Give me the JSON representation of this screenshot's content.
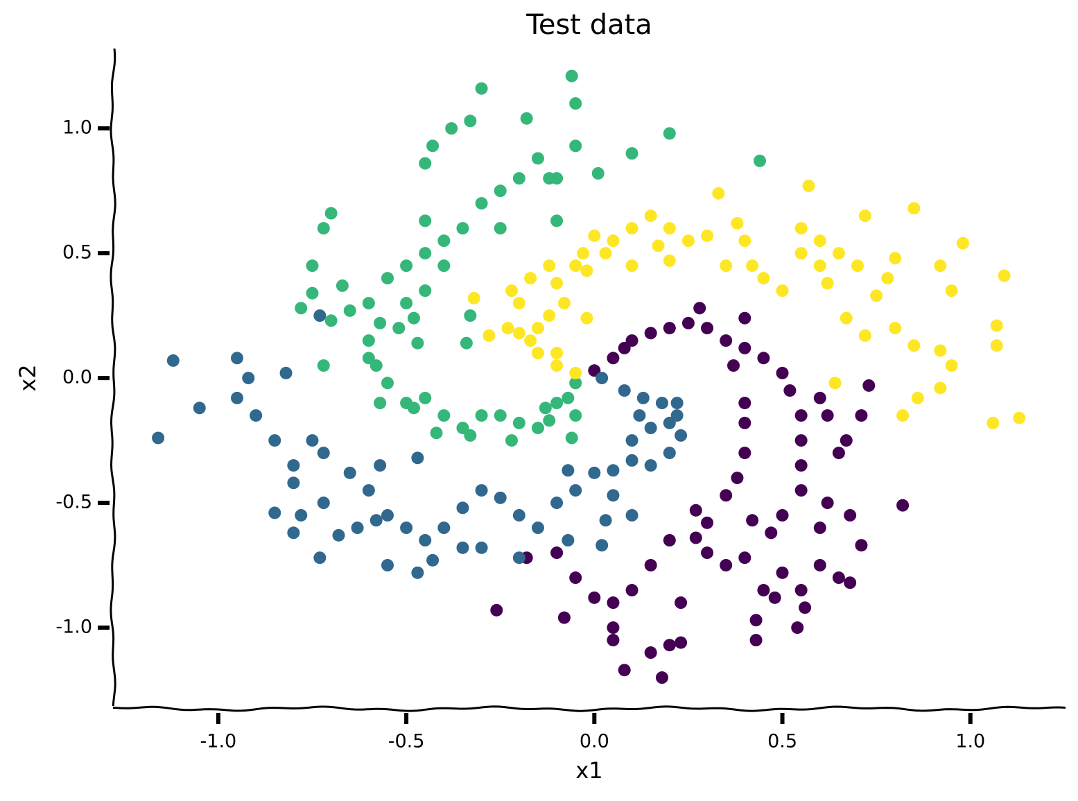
{
  "chart_data": {
    "type": "scatter",
    "title": "Test data",
    "x_label": "x1",
    "y_label": "x2",
    "xlim": [
      -1.28,
      1.253
    ],
    "ylim": [
      -1.325,
      1.32
    ],
    "xticks": [
      {
        "value": -1,
        "label": "-1.0"
      },
      -0.5,
      {
        "value": 0,
        "label": "0.0"
      },
      0.5,
      {
        "value": 1,
        "label": "1.0"
      }
    ],
    "yticks": [
      {
        "value": -1,
        "label": "-1.0"
      },
      -0.5,
      {
        "value": 0,
        "label": "0.0"
      },
      0.5,
      {
        "value": 1,
        "label": "1.0"
      }
    ],
    "series": [
      {
        "color": "#440154",
        "x": [
          0.0,
          0.05,
          0.08,
          0.1,
          0.15,
          0.2,
          0.25,
          0.3,
          0.35,
          0.4,
          0.45,
          0.5,
          0.52,
          0.55,
          0.55,
          0.55,
          0.55,
          0.5,
          0.47,
          0.4,
          0.35,
          0.3,
          0.2,
          0.15,
          0.1,
          0.05,
          0.0,
          -0.05,
          -0.1,
          -0.18,
          -0.08,
          -0.26,
          0.05,
          0.05,
          0.08,
          0.15,
          0.18,
          0.2,
          0.23,
          0.23,
          0.43,
          0.43,
          0.54,
          0.56,
          0.6,
          0.65,
          0.68,
          0.71,
          0.68,
          0.82,
          0.6,
          0.62,
          0.65,
          0.67,
          0.73,
          0.6,
          0.62,
          0.71,
          0.4,
          0.4,
          0.4,
          0.38,
          0.35,
          0.27,
          0.27,
          0.3,
          0.42,
          0.45,
          0.48,
          0.5,
          0.55,
          0.37,
          0.4,
          0.28
        ],
        "y": [
          0.03,
          0.08,
          0.12,
          0.15,
          0.18,
          0.2,
          0.22,
          0.2,
          0.15,
          0.12,
          0.08,
          0.02,
          -0.05,
          -0.15,
          -0.25,
          -0.35,
          -0.45,
          -0.55,
          -0.62,
          -0.72,
          -0.75,
          -0.7,
          -0.65,
          -0.75,
          -0.85,
          -0.9,
          -0.88,
          -0.8,
          -0.7,
          -0.72,
          -0.96,
          -0.93,
          -1.0,
          -1.05,
          -1.17,
          -1.1,
          -1.2,
          -1.07,
          -1.06,
          -0.9,
          -1.05,
          -0.97,
          -1.0,
          -0.92,
          -0.75,
          -0.8,
          -0.82,
          -0.67,
          -0.55,
          -0.51,
          -0.6,
          -0.5,
          -0.3,
          -0.25,
          -0.03,
          -0.08,
          -0.15,
          -0.15,
          -0.1,
          -0.18,
          -0.3,
          -0.4,
          -0.47,
          -0.53,
          -0.64,
          -0.58,
          -0.57,
          -0.85,
          -0.88,
          -0.78,
          -0.85,
          0.05,
          0.24,
          0.28
        ]
      },
      {
        "color": "#31688e",
        "x": [
          0.02,
          0.08,
          0.13,
          0.18,
          0.22,
          0.23,
          0.2,
          0.15,
          0.1,
          0.1,
          0.15,
          0.12,
          0.05,
          0.0,
          -0.05,
          -0.1,
          -0.15,
          -0.2,
          -0.25,
          -0.3,
          -0.35,
          -0.4,
          -0.45,
          -0.5,
          -0.55,
          -0.6,
          -0.65,
          -0.72,
          -0.75,
          -0.8,
          -0.85,
          -0.9,
          -0.95,
          -1.05,
          -1.12,
          -1.16,
          -0.95,
          -0.92,
          -0.82,
          -0.73,
          -0.8,
          -0.78,
          -0.85,
          -0.8,
          -0.73,
          -0.68,
          -0.72,
          -0.55,
          -0.47,
          -0.43,
          -0.35,
          -0.3,
          -0.2,
          -0.07,
          0.02,
          -0.07,
          0.05,
          0.1,
          0.03,
          0.2,
          0.22,
          -0.58,
          -0.63,
          -0.47,
          -0.57
        ],
        "y": [
          0.0,
          -0.05,
          -0.08,
          -0.1,
          -0.15,
          -0.23,
          -0.3,
          -0.35,
          -0.33,
          -0.25,
          -0.2,
          -0.15,
          -0.37,
          -0.38,
          -0.45,
          -0.5,
          -0.6,
          -0.55,
          -0.48,
          -0.45,
          -0.52,
          -0.6,
          -0.65,
          -0.6,
          -0.55,
          -0.45,
          -0.38,
          -0.3,
          -0.25,
          -0.35,
          -0.25,
          -0.15,
          -0.08,
          -0.12,
          0.07,
          -0.24,
          0.08,
          0.0,
          0.02,
          0.25,
          -0.42,
          -0.55,
          -0.54,
          -0.62,
          -0.72,
          -0.63,
          -0.5,
          -0.75,
          -0.78,
          -0.73,
          -0.68,
          -0.68,
          -0.72,
          -0.65,
          -0.67,
          -0.37,
          -0.47,
          -0.55,
          -0.57,
          -0.18,
          -0.1,
          -0.57,
          -0.6,
          -0.32,
          -0.35
        ]
      },
      {
        "color": "#35b779",
        "x": [
          -0.05,
          -0.1,
          -0.13,
          -0.2,
          -0.25,
          -0.3,
          -0.35,
          -0.4,
          -0.45,
          -0.5,
          -0.55,
          -0.58,
          -0.6,
          -0.57,
          -0.6,
          -0.55,
          -0.5,
          -0.45,
          -0.4,
          -0.35,
          -0.3,
          -0.25,
          -0.2,
          -0.15,
          -0.1,
          -0.05,
          -0.06,
          -0.05,
          -0.3,
          -0.18,
          0.2,
          0.1,
          0.44,
          0.01,
          -0.38,
          -0.33,
          -0.43,
          -0.45,
          -0.7,
          -0.72,
          -0.75,
          -0.75,
          -0.67,
          -0.65,
          -0.7,
          -0.72,
          -0.6,
          -0.57,
          -0.48,
          -0.42,
          -0.33,
          -0.22,
          -0.12,
          -0.06,
          -0.07,
          -0.47,
          -0.5,
          -0.45,
          -0.52,
          -0.45,
          -0.4,
          -0.25,
          -0.1,
          -0.12,
          -0.48,
          -0.33,
          -0.34,
          -0.05,
          -0.15,
          -0.78
        ],
        "y": [
          -0.02,
          -0.1,
          -0.12,
          -0.18,
          -0.15,
          -0.15,
          -0.2,
          -0.15,
          -0.08,
          -0.1,
          -0.02,
          0.05,
          0.15,
          0.22,
          0.3,
          0.4,
          0.45,
          0.5,
          0.55,
          0.6,
          0.7,
          0.75,
          0.8,
          0.88,
          0.8,
          0.93,
          1.21,
          1.1,
          1.16,
          1.04,
          0.98,
          0.9,
          0.87,
          0.82,
          1.0,
          1.03,
          0.93,
          0.86,
          0.66,
          0.6,
          0.45,
          0.34,
          0.37,
          0.27,
          0.23,
          0.05,
          0.08,
          -0.1,
          -0.12,
          -0.22,
          -0.23,
          -0.25,
          -0.17,
          -0.24,
          -0.08,
          0.14,
          0.3,
          0.35,
          0.2,
          0.63,
          0.45,
          0.6,
          0.63,
          0.8,
          0.24,
          0.25,
          0.14,
          -0.15,
          -0.2,
          0.28
        ]
      },
      {
        "color": "#fde725",
        "x": [
          -0.05,
          -0.1,
          -0.15,
          -0.17,
          -0.15,
          -0.2,
          -0.12,
          -0.2,
          -0.22,
          -0.17,
          -0.12,
          -0.1,
          -0.08,
          -0.05,
          -0.03,
          0.0,
          0.05,
          0.1,
          0.15,
          0.2,
          0.25,
          0.2,
          0.1,
          0.03,
          -0.02,
          0.3,
          0.33,
          0.4,
          0.35,
          0.42,
          0.45,
          0.5,
          0.55,
          0.6,
          0.6,
          0.62,
          0.65,
          0.57,
          0.55,
          0.7,
          0.72,
          0.8,
          0.78,
          0.75,
          0.85,
          0.92,
          0.95,
          0.98,
          1.09,
          1.07,
          1.07,
          1.06,
          1.13,
          0.92,
          0.92,
          0.86,
          0.82,
          0.95,
          0.85,
          0.8,
          0.72,
          0.64,
          0.67,
          -0.32,
          -0.28,
          -0.23,
          0.17,
          -0.02,
          0.38,
          -0.1
        ],
        "y": [
          0.02,
          0.05,
          0.1,
          0.15,
          0.2,
          0.18,
          0.25,
          0.3,
          0.35,
          0.4,
          0.45,
          0.38,
          0.3,
          0.45,
          0.5,
          0.57,
          0.55,
          0.6,
          0.65,
          0.6,
          0.55,
          0.47,
          0.45,
          0.5,
          0.43,
          0.57,
          0.74,
          0.55,
          0.45,
          0.45,
          0.4,
          0.35,
          0.5,
          0.55,
          0.45,
          0.38,
          0.5,
          0.77,
          0.6,
          0.45,
          0.65,
          0.48,
          0.4,
          0.33,
          0.68,
          0.45,
          0.35,
          0.54,
          0.41,
          0.21,
          0.13,
          -0.18,
          -0.16,
          0.11,
          -0.04,
          -0.08,
          -0.15,
          0.05,
          0.13,
          0.2,
          0.17,
          -0.02,
          0.24,
          0.32,
          0.17,
          0.2,
          0.53,
          0.24,
          0.62,
          0.1
        ]
      }
    ]
  }
}
